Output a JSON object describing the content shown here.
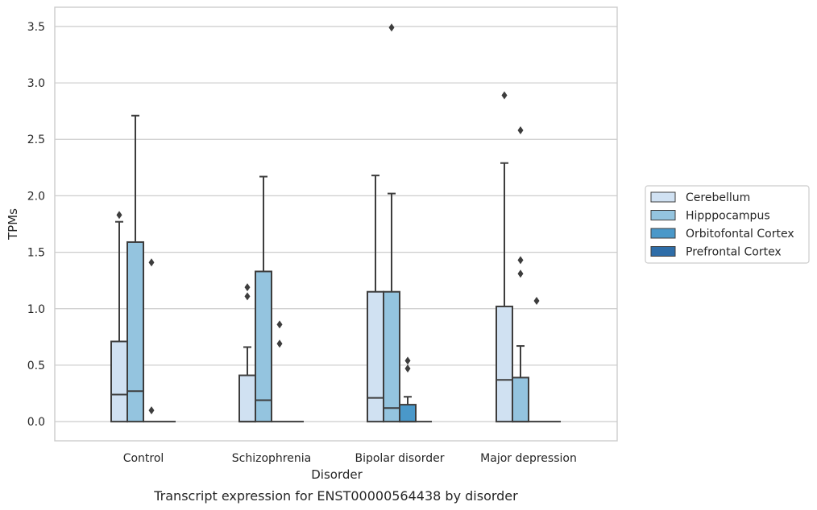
{
  "caption": "Transcript expression for ENST00000564438 by disorder",
  "chart_data": {
    "type": "box",
    "xlabel": "Disorder",
    "ylabel": "TPMs",
    "ylim": [
      -0.17,
      3.67
    ],
    "yticks": [
      "0.0",
      "0.5",
      "1.0",
      "1.5",
      "2.0",
      "2.5",
      "3.0",
      "3.5"
    ],
    "ytick_values": [
      0,
      0.5,
      1.0,
      1.5,
      2.0,
      2.5,
      3.0,
      3.5
    ],
    "grid": true,
    "legend_position": "right",
    "categories": [
      "Control",
      "Schizophrenia",
      "Bipolar disorder",
      "Major depression"
    ],
    "series": [
      {
        "name": "Cerebellum",
        "color": "#d0e1f2",
        "boxes": [
          {
            "q1": 0,
            "median": 0.24,
            "q3": 0.71,
            "whisker_low": 0,
            "whisker_high": 1.77,
            "outliers": [
              1.83
            ]
          },
          {
            "q1": 0,
            "median": 0.0,
            "q3": 0.41,
            "whisker_low": 0,
            "whisker_high": 0.66,
            "outliers": [
              1.11,
              1.19
            ]
          },
          {
            "q1": 0,
            "median": 0.21,
            "q3": 1.15,
            "whisker_low": 0,
            "whisker_high": 2.18,
            "outliers": []
          },
          {
            "q1": 0,
            "median": 0.37,
            "q3": 1.02,
            "whisker_low": 0,
            "whisker_high": 2.29,
            "outliers": [
              2.89
            ]
          }
        ]
      },
      {
        "name": "Hipppocampus",
        "color": "#94c4df",
        "boxes": [
          {
            "q1": 0,
            "median": 0.27,
            "q3": 1.59,
            "whisker_low": 0,
            "whisker_high": 2.71,
            "outliers": []
          },
          {
            "q1": 0,
            "median": 0.19,
            "q3": 1.33,
            "whisker_low": 0,
            "whisker_high": 2.17,
            "outliers": []
          },
          {
            "q1": 0,
            "median": 0.12,
            "q3": 1.15,
            "whisker_low": 0,
            "whisker_high": 2.02,
            "outliers": [
              3.49
            ]
          },
          {
            "q1": 0,
            "median": 0.0,
            "q3": 0.39,
            "whisker_low": 0,
            "whisker_high": 0.67,
            "outliers": [
              1.31,
              1.43,
              2.58
            ]
          }
        ]
      },
      {
        "name": "Orbitofontal Cortex",
        "color": "#4a98c9",
        "boxes": [
          {
            "q1": 0,
            "median": 0,
            "q3": 0,
            "whisker_low": 0,
            "whisker_high": 0,
            "outliers": [
              0.1,
              1.41
            ]
          },
          {
            "q1": 0,
            "median": 0,
            "q3": 0,
            "whisker_low": 0,
            "whisker_high": 0,
            "outliers": [
              0.69,
              0.86
            ]
          },
          {
            "q1": 0,
            "median": 0.0,
            "q3": 0.15,
            "whisker_low": 0,
            "whisker_high": 0.22,
            "outliers": [
              0.47,
              0.54
            ]
          },
          {
            "q1": 0,
            "median": 0,
            "q3": 0,
            "whisker_low": 0,
            "whisker_high": 0,
            "outliers": [
              1.07
            ]
          }
        ]
      },
      {
        "name": "Prefrontal Cortex",
        "color": "#2e6da8",
        "boxes": [
          {
            "q1": 0,
            "median": 0,
            "q3": 0,
            "whisker_low": 0,
            "whisker_high": 0,
            "outliers": []
          },
          {
            "q1": 0,
            "median": 0,
            "q3": 0,
            "whisker_low": 0,
            "whisker_high": 0,
            "outliers": []
          },
          {
            "q1": 0,
            "median": 0,
            "q3": 0,
            "whisker_low": 0,
            "whisker_high": 0,
            "outliers": []
          },
          {
            "q1": 0,
            "median": 0,
            "q3": 0,
            "whisker_low": 0,
            "whisker_high": 0,
            "outliers": []
          }
        ]
      }
    ]
  }
}
